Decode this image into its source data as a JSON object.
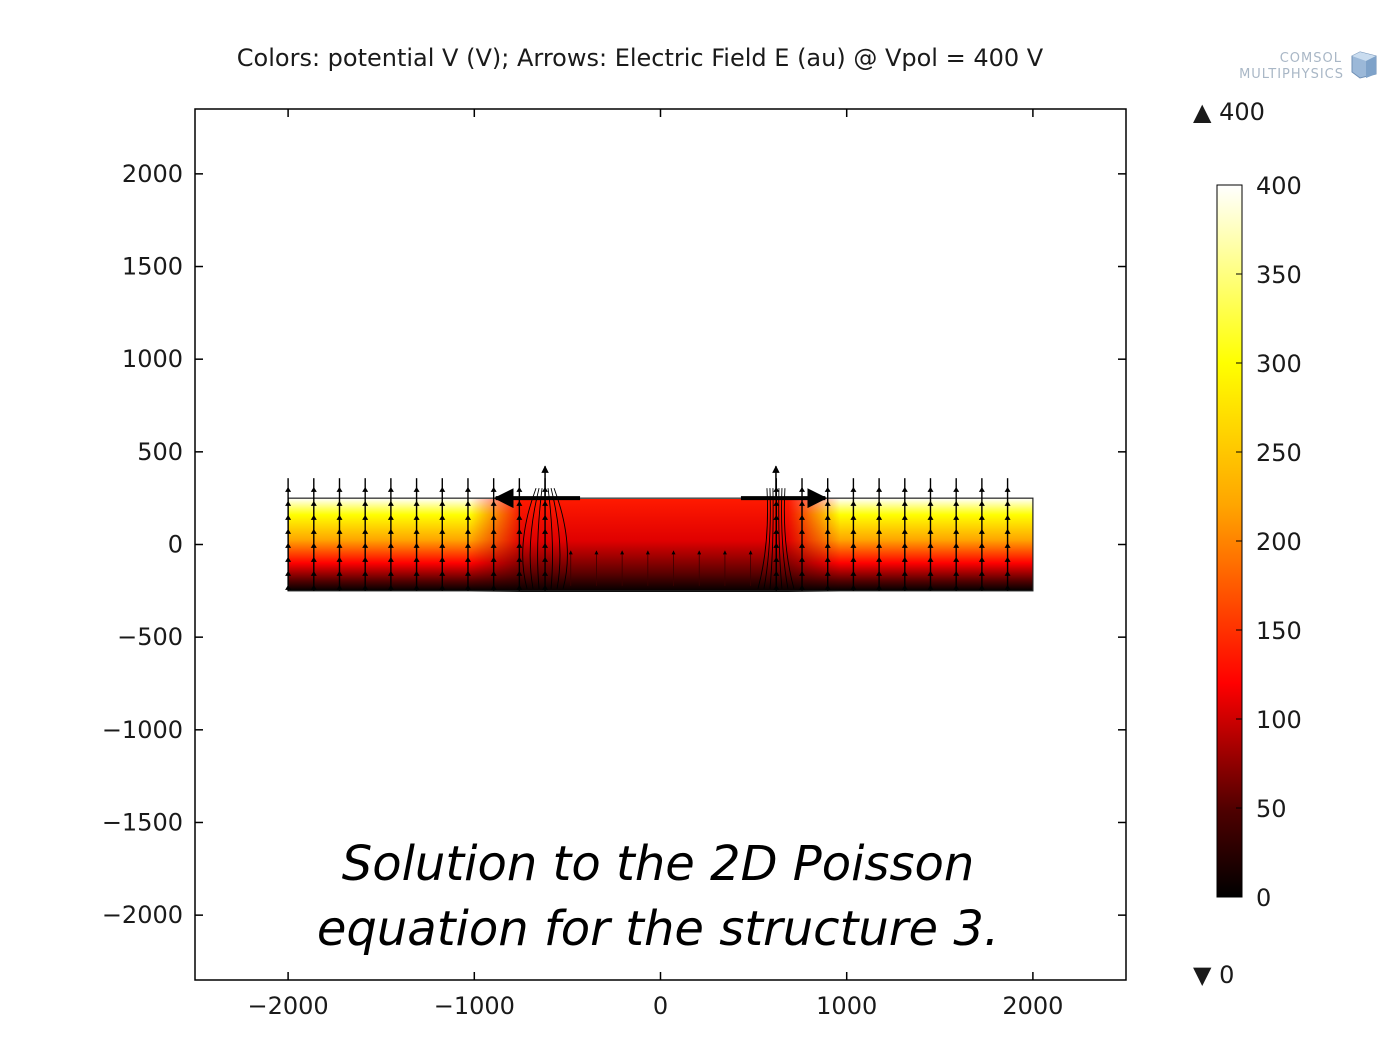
{
  "header": {
    "title": "Colors: potential V (V); Arrows: Electric Field E (au) @ Vpol = 400 V"
  },
  "logo": {
    "line1": "COMSOL",
    "line2": "MULTIPHYSICS"
  },
  "caption": {
    "line1": "Solution to the 2D Poisson",
    "line2": "equation for the structure  3."
  },
  "colorbar": {
    "max_marker": "▲ 400",
    "min_marker": "▼ 0",
    "tick_labels": [
      "400",
      "350",
      "300",
      "250",
      "200",
      "150",
      "100",
      "50",
      "0"
    ],
    "colormap": "heat (black-red-orange-yellow-white)"
  },
  "chart_data": {
    "type": "heatmap",
    "title": "Colors: potential V (V); Arrows: Electric Field E (au) @ Vpol = 400 V",
    "xlabel": "",
    "ylabel": "",
    "xlim": [
      -2500,
      2500
    ],
    "ylim": [
      -2350,
      2350
    ],
    "x_ticks": [
      -2000,
      -1000,
      0,
      1000,
      2000
    ],
    "x_tick_labels": [
      "−2000",
      "−1000",
      "0",
      "1000",
      "2000"
    ],
    "y_ticks": [
      2000,
      1500,
      1000,
      500,
      0,
      -500,
      -1000,
      -1500,
      -2000
    ],
    "y_tick_labels": [
      "2000",
      "1500",
      "1000",
      "500",
      "0",
      "−500",
      "−1000",
      "−1500",
      "−2000"
    ],
    "domain": {
      "x": [
        -2000,
        2000
      ],
      "y": [
        -250,
        250
      ]
    },
    "potential_range": [
      0,
      400
    ],
    "potential_samples": {
      "x": [
        -2000,
        -1000,
        -500,
        0,
        500,
        1000,
        2000
      ],
      "top_edge": [
        400,
        400,
        120,
        100,
        120,
        400,
        400
      ],
      "bottom_edge": [
        0,
        0,
        0,
        0,
        0,
        0,
        0
      ]
    },
    "electrode_edges_x": [
      -620,
      620
    ],
    "grid": false,
    "colorbar_position": "right"
  }
}
